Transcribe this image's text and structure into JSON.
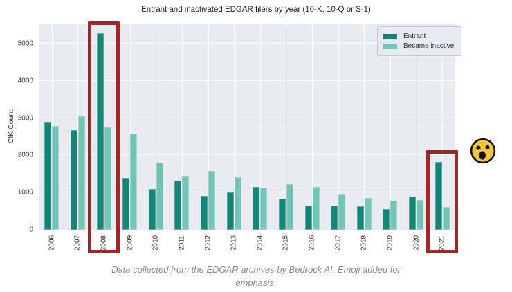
{
  "chart": {
    "title": "Entrant and inactivated EDGAR filers by year (10-K, 10-Q or S-1)",
    "ylabel": "CIK Count",
    "caption": "Data collected from the EDGAR archives by Bedrock AI. Emoji added for emphasis."
  },
  "legend": {
    "items": [
      {
        "label": "Entrant",
        "color": "#148578"
      },
      {
        "label": "Became inactive",
        "color": "#72c5b4"
      }
    ]
  },
  "colors": {
    "entrant": "#148578",
    "inactive": "#72c5b4",
    "plot_bg": "#eaeaf1",
    "grid": "#ffffff",
    "highlight_box": "#a32525",
    "title_text": "#262626",
    "tick_text": "#333333",
    "caption_text": "#8e8e8e",
    "emoji_face": "#f2c53d"
  },
  "chart_data": {
    "type": "bar",
    "categories": [
      "2006",
      "2007",
      "2008",
      "2009",
      "2010",
      "2011",
      "2012",
      "2013",
      "2014",
      "2015",
      "2016",
      "2017",
      "2018",
      "2019",
      "2020",
      "2021"
    ],
    "series": [
      {
        "name": "Entrant",
        "values": [
          2880,
          2680,
          5270,
          1390,
          1090,
          1320,
          920,
          1000,
          1160,
          830,
          650,
          650,
          640,
          560,
          890,
          1820
        ]
      },
      {
        "name": "Became inactive",
        "values": [
          2790,
          3050,
          2750,
          2590,
          1800,
          1440,
          1580,
          1410,
          1130,
          1220,
          1150,
          950,
          860,
          780,
          800,
          610
        ]
      }
    ],
    "title": "Entrant and inactivated EDGAR filers by year (10-K, 10-Q or S-1)",
    "xlabel": "",
    "ylabel": "CIK Count",
    "ylim": [
      0,
      5520
    ],
    "yticks": [
      0,
      1000,
      2000,
      3000,
      4000,
      5000
    ],
    "grid": true,
    "legend_position": "upper right",
    "highlighted_categories": [
      "2008",
      "2021"
    ],
    "annotations": [
      {
        "type": "emoji",
        "name": "surprised-face",
        "position": "right of plot, level with 2021 highlight box"
      }
    ]
  }
}
